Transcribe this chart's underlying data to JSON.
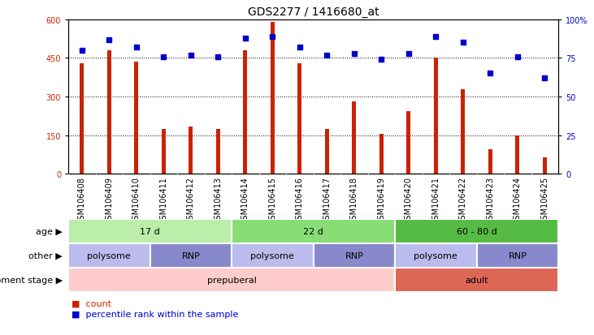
{
  "title": "GDS2277 / 1416680_at",
  "samples": [
    "GSM106408",
    "GSM106409",
    "GSM106410",
    "GSM106411",
    "GSM106412",
    "GSM106413",
    "GSM106414",
    "GSM106415",
    "GSM106416",
    "GSM106417",
    "GSM106418",
    "GSM106419",
    "GSM106420",
    "GSM106421",
    "GSM106422",
    "GSM106423",
    "GSM106424",
    "GSM106425"
  ],
  "counts": [
    430,
    480,
    435,
    175,
    185,
    175,
    480,
    590,
    430,
    175,
    280,
    155,
    245,
    450,
    330,
    95,
    150,
    65
  ],
  "percentile_ranks": [
    80,
    87,
    82,
    76,
    77,
    76,
    88,
    89,
    82,
    77,
    78,
    74,
    78,
    89,
    85,
    65,
    76,
    62
  ],
  "ylim_left": [
    0,
    600
  ],
  "ylim_right": [
    0,
    100
  ],
  "yticks_left": [
    0,
    150,
    300,
    450,
    600
  ],
  "yticks_right": [
    0,
    25,
    50,
    75,
    100
  ],
  "bar_color": "#cc2200",
  "dot_color": "#0000cc",
  "bar_width": 0.15,
  "age_groups": [
    {
      "label": "17 d",
      "start": 0,
      "end": 6,
      "color": "#bbeeaa"
    },
    {
      "label": "22 d",
      "start": 6,
      "end": 12,
      "color": "#88dd77"
    },
    {
      "label": "60 - 80 d",
      "start": 12,
      "end": 18,
      "color": "#55bb44"
    }
  ],
  "other_groups": [
    {
      "label": "polysome",
      "start": 0,
      "end": 3,
      "color": "#bbbbee"
    },
    {
      "label": "RNP",
      "start": 3,
      "end": 6,
      "color": "#8888cc"
    },
    {
      "label": "polysome",
      "start": 6,
      "end": 9,
      "color": "#bbbbee"
    },
    {
      "label": "RNP",
      "start": 9,
      "end": 12,
      "color": "#8888cc"
    },
    {
      "label": "polysome",
      "start": 12,
      "end": 15,
      "color": "#bbbbee"
    },
    {
      "label": "RNP",
      "start": 15,
      "end": 18,
      "color": "#8888cc"
    }
  ],
  "dev_stage_groups": [
    {
      "label": "prepuberal",
      "start": 0,
      "end": 12,
      "color": "#ffcccc"
    },
    {
      "label": "adult",
      "start": 12,
      "end": 18,
      "color": "#dd6655"
    }
  ],
  "row_labels": [
    "age",
    "other",
    "development stage"
  ],
  "title_fontsize": 10,
  "tick_fontsize": 7,
  "label_fontsize": 8,
  "annot_fontsize": 8,
  "xtick_bg_color": "#cccccc",
  "polysome_color_light": "#bbbbee",
  "polysome_color_dark": "#8888cc"
}
